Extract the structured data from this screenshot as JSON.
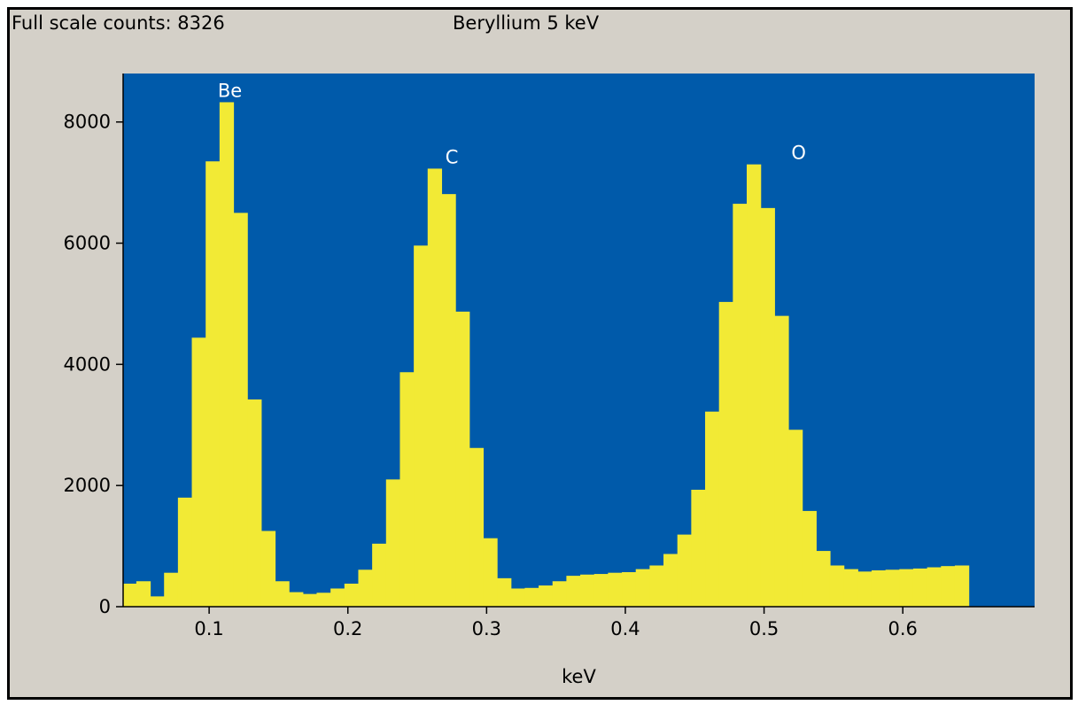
{
  "header": {
    "full_scale_label": "Full scale counts: 8326",
    "title": "Beryllium 5 keV"
  },
  "colors": {
    "frame": "#d4d0c8",
    "plot_background": "#005aaa",
    "spectrum_fill": "#f2ea35",
    "peak_label": "#ffffff",
    "text": "#000000"
  },
  "chart_data": {
    "type": "bar",
    "title": "Beryllium 5 keV",
    "xlabel": "keV",
    "ylabel": "",
    "xlim": [
      0.038,
      0.695
    ],
    "ylim": [
      0,
      8800
    ],
    "bin_width": 0.01,
    "bin_start": 0.0375,
    "x_ticks": [
      "0.1",
      "0.2",
      "0.3",
      "0.4",
      "0.5",
      "0.6"
    ],
    "y_ticks": [
      "0",
      "2000",
      "4000",
      "6000",
      "8000"
    ],
    "values": [
      380,
      420,
      170,
      560,
      1800,
      4440,
      7350,
      8326,
      6500,
      3420,
      1250,
      420,
      240,
      210,
      230,
      300,
      380,
      610,
      1040,
      2100,
      3870,
      5960,
      7230,
      6810,
      4870,
      2620,
      1130,
      470,
      300,
      310,
      350,
      420,
      510,
      530,
      540,
      560,
      570,
      620,
      680,
      870,
      1190,
      1930,
      3220,
      5030,
      6650,
      7300,
      6580,
      4800,
      2920,
      1580,
      920,
      680,
      620,
      580,
      600,
      610,
      620,
      630,
      650,
      670,
      680
    ],
    "peaks": [
      {
        "label": "Be",
        "x": 0.1175,
        "y": 8326
      },
      {
        "label": "C",
        "x": 0.2775,
        "y": 7230
      },
      {
        "label": "O",
        "x": 0.5275,
        "y": 7300
      }
    ]
  }
}
